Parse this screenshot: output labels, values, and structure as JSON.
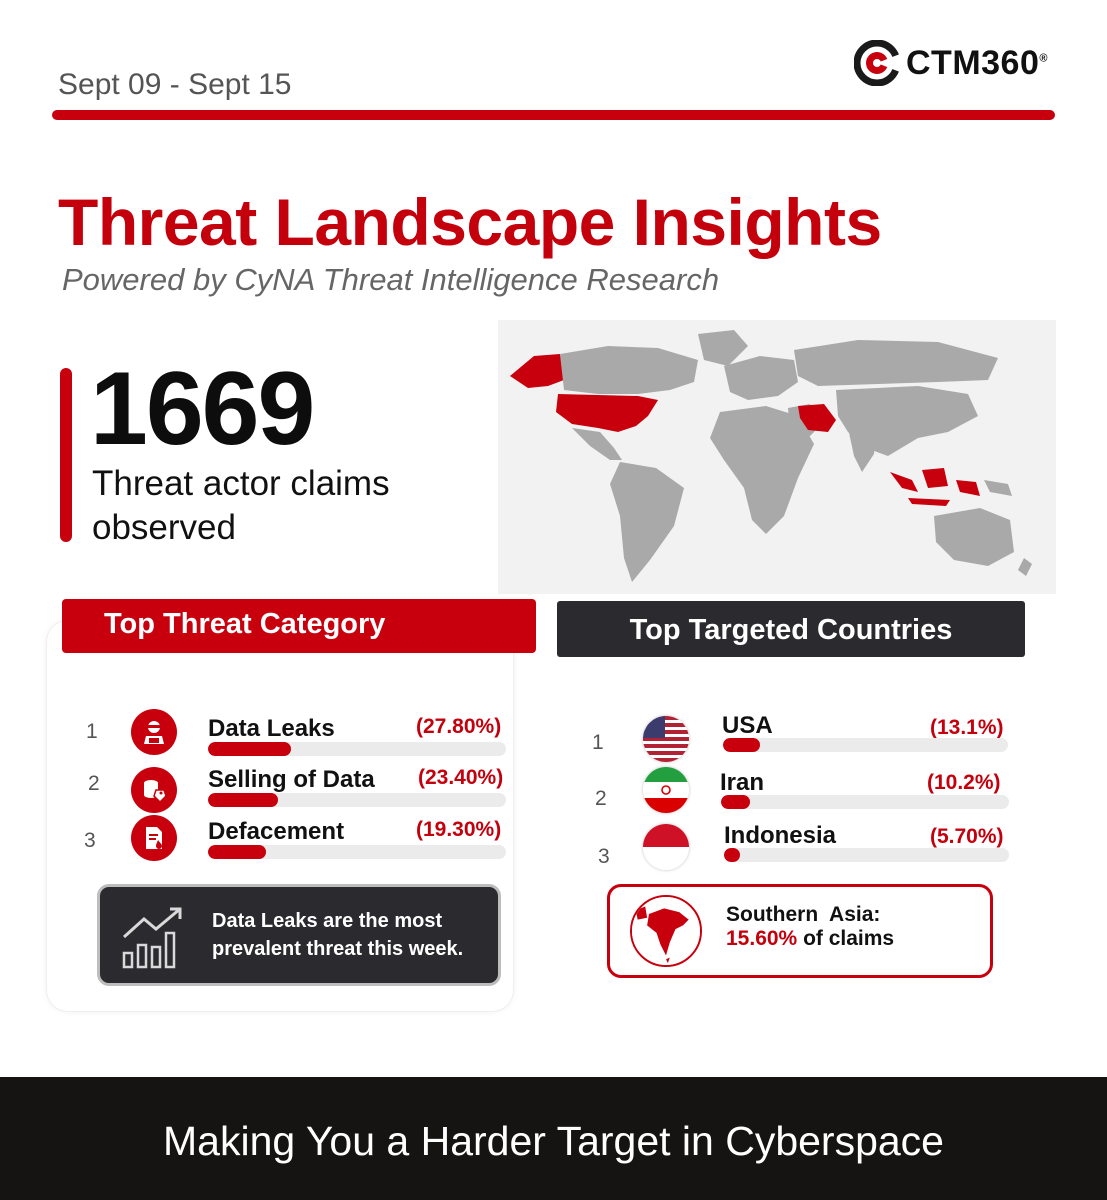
{
  "header": {
    "date_range": "Sept 09 - Sept 15",
    "logo_text": "CTM360",
    "logo_reg": "®",
    "accent_color": "#c8000d"
  },
  "hero": {
    "title": "Threat Landscape Insights",
    "subtitle": "Powered by CyNA Threat Intelligence Research"
  },
  "stat": {
    "value": "1669",
    "caption": "Threat actor claims observed"
  },
  "map": {
    "highlighted_countries": [
      "USA",
      "Iran",
      "Indonesia"
    ],
    "highlight_color": "#c8000d",
    "base_color": "#a9a9a9"
  },
  "threat_categories": {
    "title": "Top Threat Category",
    "items": [
      {
        "rank": "1",
        "label": "Data Leaks",
        "percent": "(27.80%)",
        "value": 27.8,
        "icon": "hacker-icon"
      },
      {
        "rank": "2",
        "label": "Selling of Data",
        "percent": "(23.40%)",
        "value": 23.4,
        "icon": "database-tag-icon"
      },
      {
        "rank": "3",
        "label": "Defacement",
        "percent": "(19.30%)",
        "value": 19.3,
        "icon": "document-drop-icon"
      }
    ],
    "insight": "Data Leaks are the most prevalent threat this week."
  },
  "targeted_countries": {
    "title": "Top Targeted Countries",
    "items": [
      {
        "rank": "1",
        "label": "USA",
        "percent": "(13.1%)",
        "value": 13.1,
        "flag": "usa-flag-icon"
      },
      {
        "rank": "2",
        "label": "Iran",
        "percent": "(10.2%)",
        "value": 10.2,
        "flag": "iran-flag-icon"
      },
      {
        "rank": "3",
        "label": "Indonesia",
        "percent": "(5.70%)",
        "value": 5.7,
        "flag": "indonesia-flag-icon"
      }
    ],
    "region_name": "Southern  Asia:",
    "region_percent": "15.60%",
    "region_suffix": "of claims"
  },
  "footer": {
    "tagline": "Making You a Harder Target in Cyberspace"
  }
}
